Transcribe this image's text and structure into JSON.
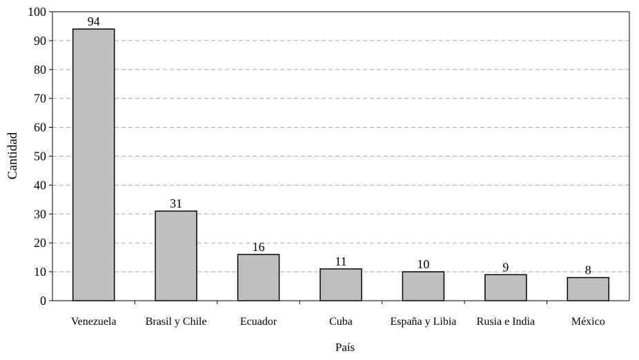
{
  "chart_data": {
    "type": "bar",
    "categories": [
      "Venezuela",
      "Brasil y Chile",
      "Ecuador",
      "Cuba",
      "España y Libia",
      "Rusia e India",
      "México"
    ],
    "values": [
      94,
      31,
      16,
      11,
      10,
      9,
      8
    ],
    "data_labels": [
      "94",
      "31",
      "16",
      "11",
      "10",
      "9",
      "8"
    ],
    "title": "",
    "xlabel": "País",
    "ylabel": "Cantidad",
    "ylim": [
      0,
      100
    ],
    "yticks": [
      0,
      10,
      20,
      30,
      40,
      50,
      60,
      70,
      80,
      90,
      100
    ],
    "ytick_labels": [
      "0",
      "10",
      "20",
      "30",
      "40",
      "50",
      "60",
      "70",
      "80",
      "90",
      "100"
    ],
    "grid": "horizontal-dashed",
    "legend": "none",
    "colors": {
      "bar_fill": "#bfbfbf",
      "bar_stroke": "#000000",
      "grid": "#a6a6a6",
      "axis": "#000000"
    }
  }
}
